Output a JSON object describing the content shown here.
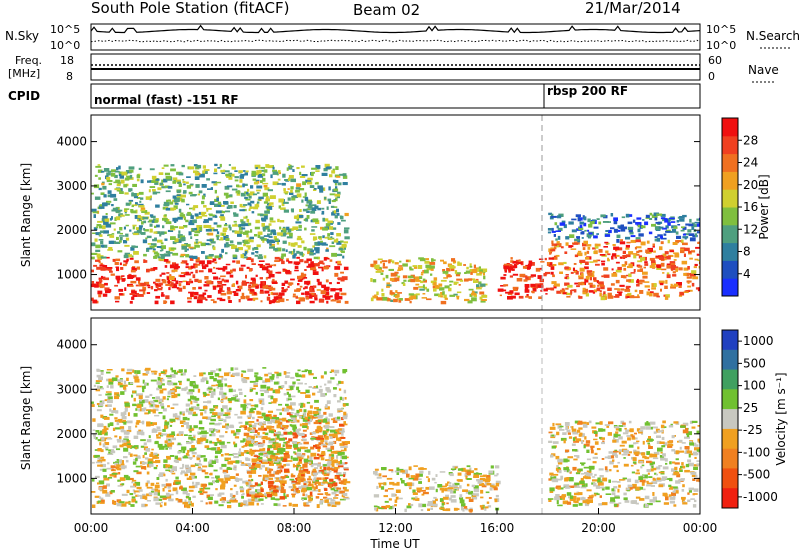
{
  "header": {
    "station": "South Pole Station (fitACF)",
    "beam": "Beam 02",
    "date": "21/Mar/2014"
  },
  "top_panel": {
    "left_label": "N.Sky",
    "y_top": "10^5",
    "y_bottom": "10^0",
    "right_label": "N.Search",
    "right_top": "10^5",
    "right_bottom": "10^0"
  },
  "freq_panel": {
    "left_label_1": "Freq.",
    "left_label_2": "[MHz]",
    "y_top": "18",
    "y_bottom": "8",
    "right_label": "Nave",
    "right_top": "60",
    "right_bottom": "0"
  },
  "cpid_panel": {
    "label": "CPID",
    "mode_1": "normal (fast) -151 RF",
    "mode_2": "rbsp 200 RF"
  },
  "colors": {
    "power_scale": [
      "#1a2fff",
      "#1f4fc0",
      "#2f7f9f",
      "#4f9f7f",
      "#7fbf3f",
      "#cfd030",
      "#f0a020",
      "#f07020",
      "#f04020",
      "#f01010"
    ],
    "velocity_scale": [
      "#2040c0",
      "#3070a0",
      "#40a060",
      "#70c030",
      "#c8c8c0",
      "#f0a020",
      "#f08020",
      "#f05010",
      "#f02010"
    ]
  },
  "chart_data": [
    {
      "type": "heatmap",
      "title": "",
      "ylabel": "Slant Range [km]",
      "xlabel": "",
      "ylim": [
        200,
        4600
      ],
      "y_ticks": [
        "1000",
        "2000",
        "3000",
        "4000"
      ],
      "x_ticks": [],
      "colorbar": {
        "label": "Power [dB]",
        "ticks": [
          "4",
          "8",
          "12",
          "16",
          "20",
          "24",
          "28"
        ],
        "range": [
          0,
          30
        ]
      },
      "features": [
        {
          "x_range": [
            "00:00",
            "10:00"
          ],
          "y_range": [
            400,
            1400
          ],
          "level": "high",
          "value": 28
        },
        {
          "x_range": [
            "00:00",
            "10:00"
          ],
          "y_range": [
            1400,
            3500
          ],
          "level": "mixed",
          "value": 12
        },
        {
          "x_range": [
            "11:00",
            "15:30"
          ],
          "y_range": [
            400,
            1400
          ],
          "level": "mid",
          "value": 18
        },
        {
          "x_range": [
            "16:00",
            "18:00"
          ],
          "y_range": [
            500,
            1400
          ],
          "level": "high",
          "value": 28
        },
        {
          "x_range": [
            "18:00",
            "24:00"
          ],
          "y_range": [
            500,
            1800
          ],
          "level": "high",
          "value": 24
        },
        {
          "x_range": [
            "18:00",
            "24:00"
          ],
          "y_range": [
            1800,
            2400
          ],
          "level": "low",
          "value": 6
        }
      ]
    },
    {
      "type": "heatmap",
      "title": "",
      "ylabel": "Slant Range [km]",
      "xlabel": "Time UT",
      "ylim": [
        200,
        4600
      ],
      "y_ticks": [
        "1000",
        "2000",
        "3000",
        "4000"
      ],
      "x_ticks": [
        "00:00",
        "04:00",
        "08:00",
        "12:00",
        "16:00",
        "20:00",
        "00:00"
      ],
      "colorbar": {
        "label": "Velocity [m s⁻¹]",
        "ticks": [
          "1000",
          "500",
          "100",
          "25",
          "-25",
          "-100",
          "-500",
          "-1000"
        ],
        "range": [
          -1200,
          1200
        ]
      },
      "features": [
        {
          "x_range": [
            "00:00",
            "10:00"
          ],
          "y_range": [
            400,
            1300
          ],
          "level": "mixed green/orange",
          "value": -100
        },
        {
          "x_range": [
            "06:00",
            "10:00"
          ],
          "y_range": [
            600,
            2500
          ],
          "level": "negative",
          "value": -500
        },
        {
          "x_range": [
            "00:00",
            "10:00"
          ],
          "y_range": [
            1300,
            3500
          ],
          "level": "near zero",
          "value": 0
        },
        {
          "x_range": [
            "11:00",
            "16:00"
          ],
          "y_range": [
            300,
            1300
          ],
          "level": "mixed",
          "value": -100
        },
        {
          "x_range": [
            "18:00",
            "24:00"
          ],
          "y_range": [
            400,
            2300
          ],
          "level": "mixed",
          "value": -100
        }
      ]
    }
  ]
}
